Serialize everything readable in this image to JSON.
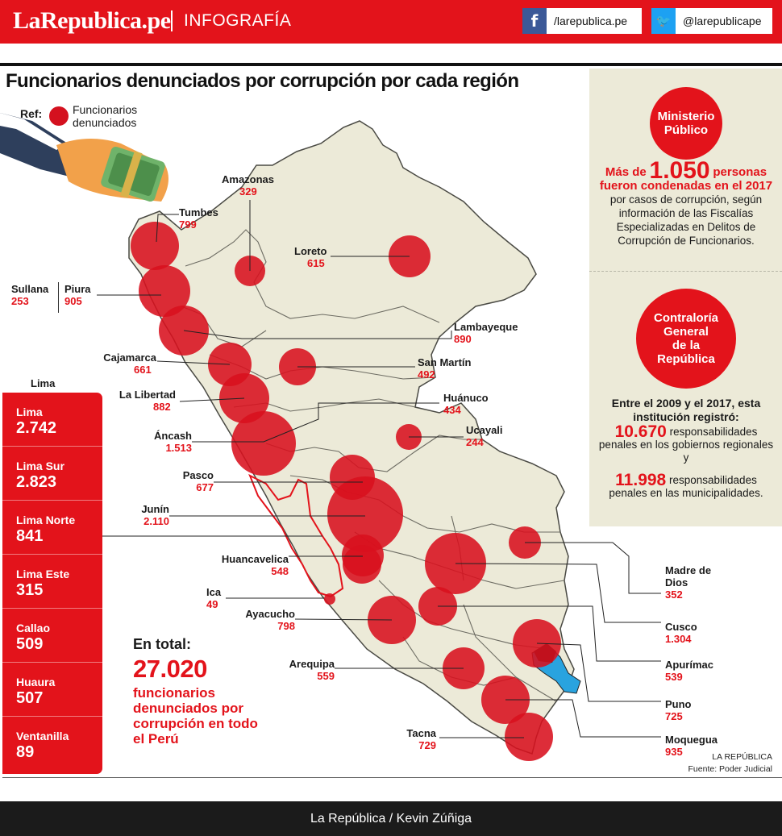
{
  "header": {
    "brand": "LaRepublica.pe",
    "section": "INFOGRAFÍA",
    "facebook": "/larepublica.pe",
    "twitter": "@larepublicape",
    "facebook_icon": "facebook-icon",
    "twitter_icon": "twitter-icon"
  },
  "title": "Funcionarios denunciados por corrupción por cada región",
  "legend": {
    "ref_label": "Ref:",
    "dot_label_1": "Funcionarios",
    "dot_label_2": "denunciados"
  },
  "regions": [
    {
      "name": "Amazonas",
      "value": "329"
    },
    {
      "name": "Tumbes",
      "value": "799"
    },
    {
      "name": "Loreto",
      "value": "615"
    },
    {
      "name": "Sullana",
      "value": "253"
    },
    {
      "name": "Piura",
      "value": "905"
    },
    {
      "name": "Lambayeque",
      "value": "890"
    },
    {
      "name": "Cajamarca",
      "value": "661"
    },
    {
      "name": "San Martín",
      "value": "492"
    },
    {
      "name": "La Libertad",
      "value": "882"
    },
    {
      "name": "Huánuco",
      "value": "434"
    },
    {
      "name": "Ucayali",
      "value": "244"
    },
    {
      "name": "Áncash",
      "value": "1.513"
    },
    {
      "name": "Pasco",
      "value": "677"
    },
    {
      "name": "Junín",
      "value": "2.110"
    },
    {
      "name": "Huancavelica",
      "value": "548"
    },
    {
      "name": "Ica",
      "value": "49"
    },
    {
      "name": "Ayacucho",
      "value": "798"
    },
    {
      "name": "Arequipa",
      "value": "559"
    },
    {
      "name": "Tacna",
      "value": "729"
    },
    {
      "name": "Madre de Dios",
      "value": "352"
    },
    {
      "name": "Cusco",
      "value": "1.304"
    },
    {
      "name": "Apurímac",
      "value": "539"
    },
    {
      "name": "Puno",
      "value": "725"
    },
    {
      "name": "Moquegua",
      "value": "935"
    }
  ],
  "lima": {
    "heading": "Lima",
    "items": [
      {
        "name": "Lima",
        "value": "2.742"
      },
      {
        "name": "Lima Sur",
        "value": "2.823"
      },
      {
        "name": "Lima Norte",
        "value": "841"
      },
      {
        "name": "Lima Este",
        "value": "315"
      },
      {
        "name": "Callao",
        "value": "509"
      },
      {
        "name": "Huaura",
        "value": "507"
      },
      {
        "name": "Ventanilla",
        "value": "89"
      }
    ]
  },
  "total": {
    "heading": "En total:",
    "value": "27.020",
    "text": "funcionarios denunciados por corrupción en todo el Perú"
  },
  "ministerio": {
    "circle_line1": "Ministerio",
    "circle_line2": "Público",
    "lead": "Más de",
    "number": "1.050",
    "unit": "personas",
    "line2": "fueron condenadas en el 2017",
    "rest": "por casos de corrupción, según información de las Fiscalías Especializadas en Delitos de Corrupción de Funcionarios."
  },
  "contraloria": {
    "circle_line1": "Contraloría",
    "circle_line2": "General",
    "circle_line3": "de la",
    "circle_line4": "República",
    "intro": "Entre el 2009 y el 2017, esta institución registró:",
    "stat1_num": "10.670",
    "stat1_text": "responsabilidades penales en los gobiernos regionales y",
    "stat2_num": "11.998",
    "stat2_text": "responsabilidades penales en las municipalidades."
  },
  "credit": {
    "line1": "LA REPÚBLICA",
    "line2": "Fuente: Poder Judicial"
  },
  "footer": "La República / Kevin Zúñiga",
  "colors": {
    "accent": "#e3131b",
    "map_fill": "#ecead8",
    "panel": "#ecead8",
    "lake": "#29a3df"
  }
}
